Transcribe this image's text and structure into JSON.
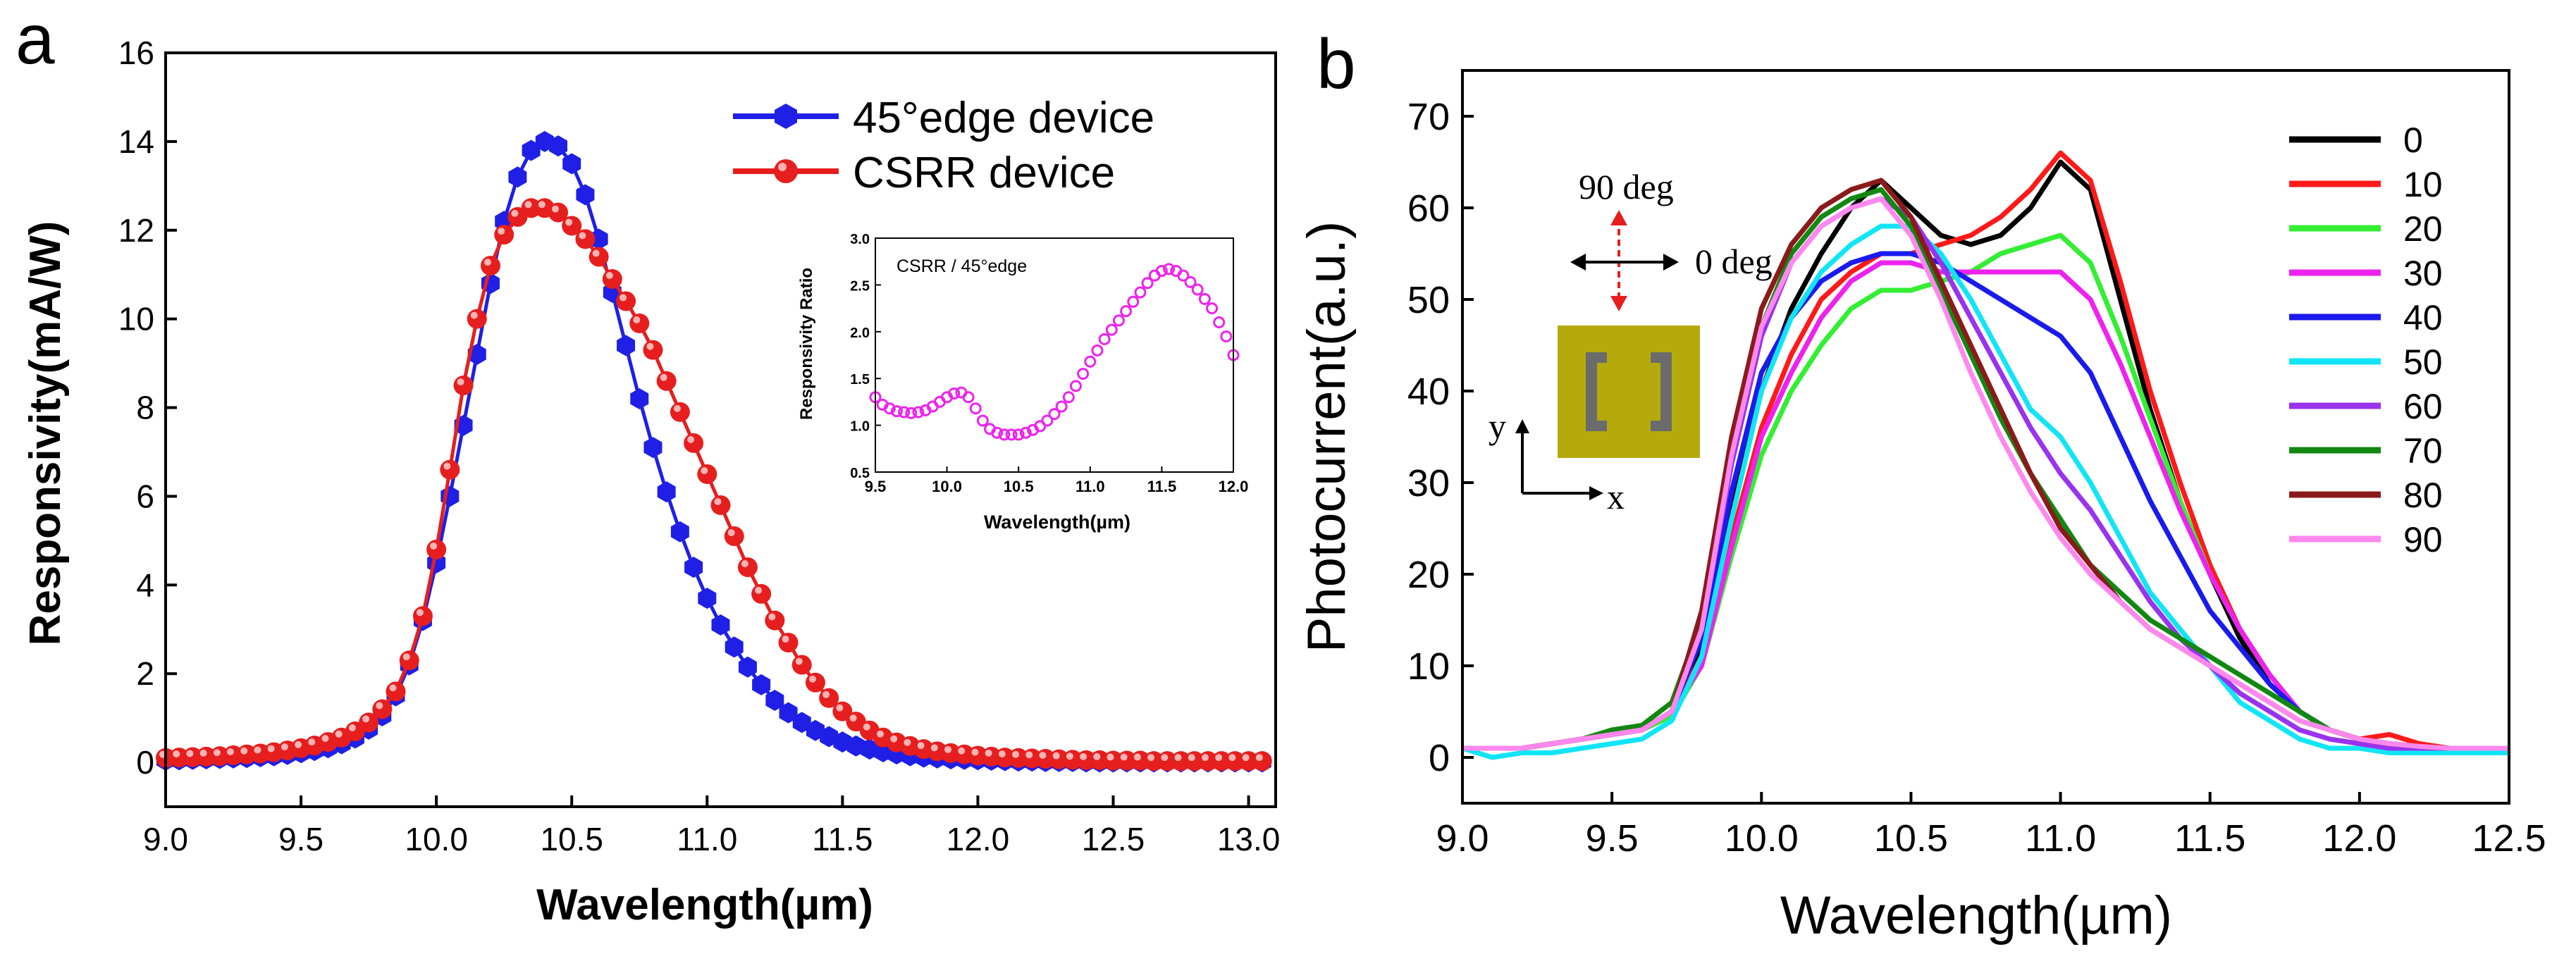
{
  "chart_data": [
    {
      "panel_label": "a",
      "type": "line",
      "xlabel": "Wavelength(µm)",
      "ylabel": "Responsivity(mA/W)",
      "xlim": [
        9.0,
        13.1
      ],
      "ylim": [
        -1.0,
        16.0
      ],
      "xticks": [
        "9.0",
        "9.5",
        "10.0",
        "10.5",
        "11.0",
        "11.5",
        "12.0",
        "12.5",
        "13.0"
      ],
      "yticks": [
        "0",
        "2",
        "4",
        "6",
        "8",
        "10",
        "12",
        "14",
        "16"
      ],
      "legend_position": "top-right",
      "series": [
        {
          "name": "45°edge device",
          "color": "#1f1fe6",
          "marker": "hexagon",
          "x_start": 9.0,
          "x_step": 0.05,
          "values": [
            0.05,
            0.06,
            0.07,
            0.08,
            0.09,
            0.1,
            0.11,
            0.13,
            0.15,
            0.18,
            0.22,
            0.27,
            0.33,
            0.42,
            0.55,
            0.75,
            1.05,
            1.5,
            2.2,
            3.2,
            4.5,
            6.0,
            7.6,
            9.2,
            10.8,
            12.2,
            13.2,
            13.8,
            14.0,
            13.9,
            13.5,
            12.8,
            11.8,
            10.6,
            9.4,
            8.2,
            7.1,
            6.1,
            5.2,
            4.4,
            3.7,
            3.1,
            2.6,
            2.15,
            1.75,
            1.4,
            1.12,
            0.9,
            0.72,
            0.58,
            0.46,
            0.37,
            0.3,
            0.24,
            0.19,
            0.15,
            0.12,
            0.1,
            0.08,
            0.07,
            0.06,
            0.05,
            0.04,
            0.03,
            0.03,
            0.02,
            0.02,
            0.02,
            0.01,
            0.01,
            0.01,
            0.01,
            0.01,
            0.01,
            0.01,
            0.01,
            0.01,
            0.01,
            0.01,
            0.01,
            0.01,
            0.01
          ]
        },
        {
          "name": "CSRR device",
          "color": "#e61e1e",
          "marker": "sphere",
          "x_start": 9.0,
          "x_step": 0.05,
          "values": [
            0.1,
            0.11,
            0.12,
            0.13,
            0.14,
            0.16,
            0.18,
            0.2,
            0.23,
            0.27,
            0.32,
            0.38,
            0.46,
            0.56,
            0.7,
            0.9,
            1.2,
            1.6,
            2.3,
            3.3,
            4.8,
            6.6,
            8.5,
            10.0,
            11.2,
            11.9,
            12.3,
            12.5,
            12.5,
            12.4,
            12.1,
            11.8,
            11.4,
            10.9,
            10.4,
            9.9,
            9.3,
            8.6,
            7.9,
            7.2,
            6.5,
            5.8,
            5.1,
            4.4,
            3.8,
            3.2,
            2.7,
            2.2,
            1.8,
            1.45,
            1.15,
            0.92,
            0.72,
            0.56,
            0.45,
            0.37,
            0.3,
            0.25,
            0.21,
            0.18,
            0.15,
            0.13,
            0.11,
            0.1,
            0.09,
            0.08,
            0.07,
            0.06,
            0.05,
            0.05,
            0.04,
            0.04,
            0.04,
            0.03,
            0.03,
            0.03,
            0.03,
            0.03,
            0.03,
            0.03,
            0.03,
            0.03
          ]
        }
      ],
      "inset": {
        "type": "scatter",
        "annotation": "CSRR / 45°edge",
        "xlabel": "Wavelength(µm)",
        "ylabel": "Responsivity Ratio",
        "xlim": [
          9.5,
          12.0
        ],
        "ylim": [
          0.5,
          3.0
        ],
        "xticks": [
          "9.5",
          "10.0",
          "10.5",
          "11.0",
          "11.5",
          "12.0"
        ],
        "yticks": [
          "0.5",
          "1.0",
          "1.5",
          "2.0",
          "2.5",
          "3.0"
        ],
        "color": "#ee22ee",
        "x": [
          9.5,
          9.55,
          9.6,
          9.65,
          9.7,
          9.75,
          9.8,
          9.85,
          9.9,
          9.95,
          10.0,
          10.05,
          10.1,
          10.15,
          10.2,
          10.25,
          10.3,
          10.35,
          10.4,
          10.45,
          10.5,
          10.55,
          10.6,
          10.65,
          10.7,
          10.75,
          10.8,
          10.85,
          10.9,
          10.95,
          11.0,
          11.05,
          11.1,
          11.15,
          11.2,
          11.25,
          11.3,
          11.35,
          11.4,
          11.45,
          11.5,
          11.55,
          11.6,
          11.65,
          11.7,
          11.75,
          11.8,
          11.85,
          11.9,
          11.95,
          12.0
        ],
        "values": [
          1.3,
          1.22,
          1.18,
          1.15,
          1.14,
          1.13,
          1.14,
          1.16,
          1.2,
          1.25,
          1.3,
          1.34,
          1.35,
          1.3,
          1.18,
          1.05,
          0.96,
          0.92,
          0.9,
          0.9,
          0.9,
          0.92,
          0.95,
          0.99,
          1.05,
          1.12,
          1.2,
          1.3,
          1.42,
          1.55,
          1.68,
          1.8,
          1.92,
          2.02,
          2.12,
          2.22,
          2.32,
          2.42,
          2.52,
          2.6,
          2.65,
          2.67,
          2.65,
          2.6,
          2.53,
          2.45,
          2.35,
          2.25,
          2.1,
          1.95,
          1.75
        ]
      }
    },
    {
      "panel_label": "b",
      "type": "line",
      "xlabel": "Wavelength(µm)",
      "ylabel": "Photocurrent(a.u.)",
      "xlim": [
        9.0,
        12.5
      ],
      "ylim": [
        -5,
        75
      ],
      "xticks": [
        "9.0",
        "9.5",
        "10.0",
        "10.5",
        "11.0",
        "11.5",
        "12.0",
        "12.5"
      ],
      "yticks": [
        "0",
        "10",
        "20",
        "30",
        "40",
        "50",
        "60",
        "70"
      ],
      "legend_position": "right",
      "x": [
        9.0,
        9.1,
        9.2,
        9.3,
        9.4,
        9.5,
        9.6,
        9.7,
        9.8,
        9.9,
        10.0,
        10.1,
        10.2,
        10.3,
        10.4,
        10.5,
        10.6,
        10.7,
        10.8,
        10.9,
        11.0,
        11.1,
        11.2,
        11.3,
        11.4,
        11.5,
        11.6,
        11.7,
        11.8,
        11.9,
        12.0,
        12.1,
        12.2,
        12.3,
        12.4,
        12.5
      ],
      "series": [
        {
          "name": "0",
          "color": "#000000",
          "values": [
            1,
            1,
            1,
            1.5,
            2,
            2.5,
            3,
            5,
            12,
            27,
            40,
            49,
            55,
            60,
            63,
            60,
            57,
            56,
            57,
            60,
            65,
            62,
            50,
            38,
            28,
            20,
            13,
            8,
            5,
            3,
            2,
            1.5,
            1.2,
            1,
            1,
            1
          ]
        },
        {
          "name": "10",
          "color": "#ff1a1a",
          "values": [
            1,
            1,
            1,
            1.5,
            2,
            2.5,
            3,
            5,
            11,
            24,
            36,
            44,
            50,
            53,
            55,
            55,
            56,
            57,
            59,
            62,
            66,
            63,
            52,
            40,
            30,
            21,
            14,
            9,
            5,
            3,
            2,
            2.5,
            1.5,
            1,
            1,
            1
          ]
        },
        {
          "name": "20",
          "color": "#33ee33",
          "values": [
            1,
            1,
            1,
            1.5,
            2,
            2.5,
            3,
            4.5,
            10,
            22,
            33,
            40,
            45,
            49,
            51,
            51,
            52,
            53,
            55,
            56,
            57,
            54,
            46,
            37,
            28,
            20,
            14,
            9,
            5,
            3,
            2,
            1.5,
            1.2,
            1,
            1,
            1
          ]
        },
        {
          "name": "30",
          "color": "#ee22ee",
          "values": [
            1,
            1,
            1,
            1.5,
            2,
            2.5,
            3,
            5,
            10,
            23,
            35,
            42,
            48,
            52,
            54,
            54,
            53,
            53,
            53,
            53,
            53,
            50,
            43,
            35,
            27,
            20,
            14,
            9,
            5,
            3,
            2,
            1.5,
            1.2,
            1,
            1,
            1
          ]
        },
        {
          "name": "40",
          "color": "#1a1aee",
          "values": [
            1,
            1,
            1,
            1.5,
            2,
            2.5,
            3,
            5,
            13,
            29,
            42,
            48,
            52,
            54,
            55,
            55,
            54,
            52,
            50,
            48,
            46,
            42,
            35,
            28,
            22,
            16,
            12,
            8,
            5,
            3,
            2,
            1.5,
            1.2,
            1,
            1,
            1
          ]
        },
        {
          "name": "50",
          "color": "#11e5f5",
          "values": [
            1,
            0,
            0.5,
            0.5,
            1,
            1.5,
            2,
            4,
            11,
            26,
            40,
            48,
            53,
            56,
            58,
            58,
            55,
            50,
            44,
            38,
            35,
            30,
            24,
            18,
            14,
            10,
            6,
            4,
            2,
            1,
            1,
            0.5,
            0.5,
            0.5,
            0.5,
            0.5
          ]
        },
        {
          "name": "60",
          "color": "#9933ee",
          "values": [
            1,
            1,
            1,
            1.5,
            2,
            2.5,
            3,
            5,
            14,
            32,
            46,
            54,
            58,
            60,
            61,
            59,
            54,
            48,
            42,
            36,
            31,
            27,
            22,
            17,
            13,
            10,
            7,
            5,
            3,
            2,
            1.5,
            1,
            1,
            1,
            1,
            1
          ]
        },
        {
          "name": "70",
          "color": "#118811",
          "values": [
            1,
            1,
            1,
            1.5,
            2,
            3,
            3.5,
            6,
            15,
            33,
            47,
            55,
            59,
            61,
            62,
            58,
            51,
            44,
            37,
            31,
            26,
            21,
            18,
            15,
            13,
            11,
            9,
            7,
            5,
            3,
            2,
            1.5,
            1.2,
            1,
            1,
            1
          ]
        },
        {
          "name": "80",
          "color": "#8b1a1a",
          "values": [
            1,
            1,
            1,
            1.5,
            2,
            2.5,
            3,
            5,
            16,
            35,
            49,
            56,
            60,
            62,
            63,
            59,
            52,
            45,
            38,
            31,
            25,
            21,
            17,
            14,
            12,
            10,
            8,
            6,
            4,
            3,
            2,
            1.5,
            1.2,
            1,
            1,
            1
          ]
        },
        {
          "name": "90",
          "color": "#ff88ee",
          "values": [
            1,
            1,
            1,
            1.5,
            2,
            2.5,
            3,
            5,
            14,
            33,
            47,
            54,
            58,
            60,
            61,
            57,
            50,
            42,
            35,
            29,
            24,
            20,
            17,
            14,
            12,
            10,
            8,
            6,
            4,
            3,
            2,
            1.5,
            1.2,
            1,
            1,
            1
          ]
        }
      ],
      "annotations": {
        "pol_90": "90 deg",
        "pol_0": "0 deg",
        "axis_y": "y",
        "axis_x": "x"
      }
    }
  ]
}
